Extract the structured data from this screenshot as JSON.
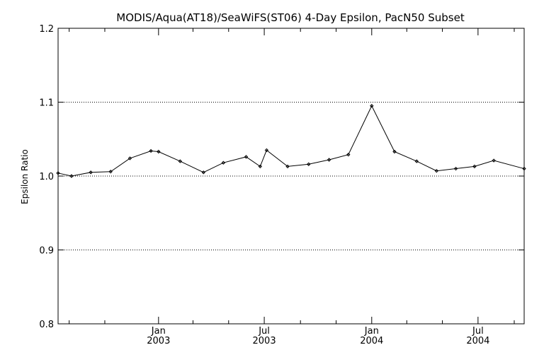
{
  "chart_data": {
    "type": "line",
    "title": "MODIS/Aqua(AT18)/SeaWiFS(ST06) 4-Day Epsilon, PacN50 Subset",
    "xlabel": "",
    "ylabel": "Epsilon Ratio",
    "xlim": [
      "2002-07-13",
      "2004-09-18"
    ],
    "ylim": [
      0.8,
      1.2
    ],
    "yticks": [
      "0.8",
      "0.9",
      "1.0",
      "1.1",
      "1.2"
    ],
    "ygrid": [
      0.9,
      1.0,
      1.1
    ],
    "xticks_major": [
      {
        "date": "2003-01-01",
        "month": "Jan",
        "year": "2003"
      },
      {
        "date": "2003-07-01",
        "month": "Jul",
        "year": "2003"
      },
      {
        "date": "2004-01-01",
        "month": "Jan",
        "year": "2004"
      },
      {
        "date": "2004-07-01",
        "month": "Jul",
        "year": "2004"
      }
    ],
    "xticks_minor": [
      "2002-08-01",
      "2002-10-01",
      "2003-03-01",
      "2003-05-01",
      "2003-09-01",
      "2003-11-01",
      "2004-03-01",
      "2004-05-01",
      "2004-09-01"
    ],
    "series": [
      {
        "name": "",
        "x": [
          "2002-07-13",
          "2002-08-05",
          "2002-09-07",
          "2002-10-11",
          "2002-11-13",
          "2002-12-19",
          "2003-01-01",
          "2003-02-07",
          "2003-03-19",
          "2003-04-22",
          "2003-05-31",
          "2003-06-24",
          "2003-07-05",
          "2003-08-10",
          "2003-09-15",
          "2003-10-20",
          "2003-11-22",
          "2004-01-01",
          "2004-02-09",
          "2004-03-18",
          "2004-04-21",
          "2004-05-24",
          "2004-06-25",
          "2004-07-28",
          "2004-09-18"
        ],
        "y": [
          1.004,
          1.0,
          1.005,
          1.006,
          1.024,
          1.034,
          1.033,
          1.02,
          1.005,
          1.018,
          1.026,
          1.013,
          1.035,
          1.013,
          1.016,
          1.022,
          1.029,
          1.095,
          1.033,
          1.02,
          1.007,
          1.01,
          1.013,
          1.021,
          1.01
        ]
      }
    ]
  }
}
